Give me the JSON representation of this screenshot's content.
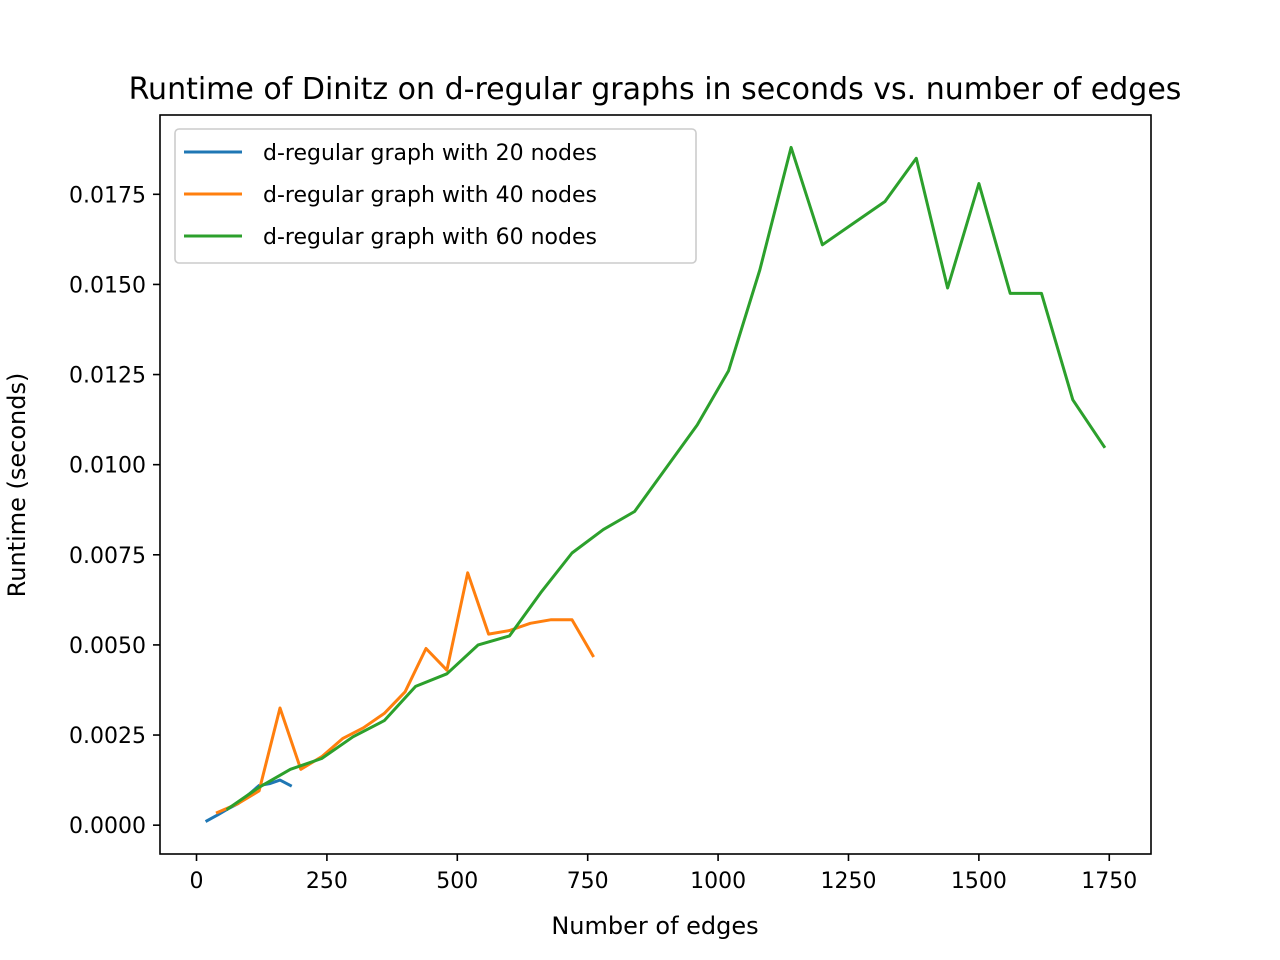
{
  "chart_data": {
    "type": "line",
    "title": "Runtime of Dinitz on d-regular graphs in seconds vs. number of edges",
    "xlabel": "Number of edges",
    "ylabel": "Runtime (seconds)",
    "xlim": [
      -70,
      1830
    ],
    "ylim": [
      -0.0008,
      0.0197
    ],
    "xticks": [
      0,
      250,
      500,
      750,
      1000,
      1250,
      1500,
      1750
    ],
    "xtick_labels": [
      "0",
      "250",
      "500",
      "750",
      "1000",
      "1250",
      "1500",
      "1750"
    ],
    "yticks": [
      0.0,
      0.0025,
      0.005,
      0.0075,
      0.01,
      0.0125,
      0.015,
      0.0175
    ],
    "ytick_labels": [
      "0.0000",
      "0.0025",
      "0.0050",
      "0.0075",
      "0.0100",
      "0.0125",
      "0.0150",
      "0.0175"
    ],
    "grid": false,
    "legend_position": "top-left",
    "series": [
      {
        "name": "d-regular graph with 20 nodes",
        "color": "#1f77b4",
        "x": [
          20,
          40,
          60,
          80,
          100,
          120,
          140,
          160,
          180
        ],
        "y": [
          0.00012,
          0.00028,
          0.00045,
          0.0006,
          0.00085,
          0.0011,
          0.00115,
          0.00125,
          0.0011
        ]
      },
      {
        "name": "d-regular graph with 40 nodes",
        "color": "#ff7f0e",
        "x": [
          40,
          80,
          120,
          160,
          200,
          240,
          280,
          320,
          360,
          400,
          440,
          480,
          520,
          560,
          600,
          640,
          680,
          720,
          760
        ],
        "y": [
          0.00035,
          0.0006,
          0.00095,
          0.00325,
          0.00155,
          0.0019,
          0.0024,
          0.0027,
          0.0031,
          0.0037,
          0.0049,
          0.0043,
          0.007,
          0.0053,
          0.0054,
          0.0056,
          0.0057,
          0.0057,
          0.0047
        ]
      },
      {
        "name": "d-regular graph with 60 nodes",
        "color": "#2ca02c",
        "x": [
          60,
          120,
          180,
          240,
          300,
          360,
          420,
          480,
          540,
          600,
          660,
          720,
          780,
          840,
          900,
          960,
          1020,
          1080,
          1140,
          1200,
          1260,
          1320,
          1380,
          1440,
          1500,
          1560,
          1620,
          1680,
          1740
        ],
        "y": [
          0.00045,
          0.00105,
          0.00155,
          0.00185,
          0.00245,
          0.0029,
          0.00385,
          0.0042,
          0.005,
          0.00525,
          0.00645,
          0.00755,
          0.0082,
          0.0087,
          0.0099,
          0.0111,
          0.0126,
          0.0154,
          0.0188,
          0.0161,
          0.0167,
          0.0173,
          0.0185,
          0.0149,
          0.0178,
          0.01475,
          0.01475,
          0.0118,
          0.0105
        ]
      }
    ]
  }
}
